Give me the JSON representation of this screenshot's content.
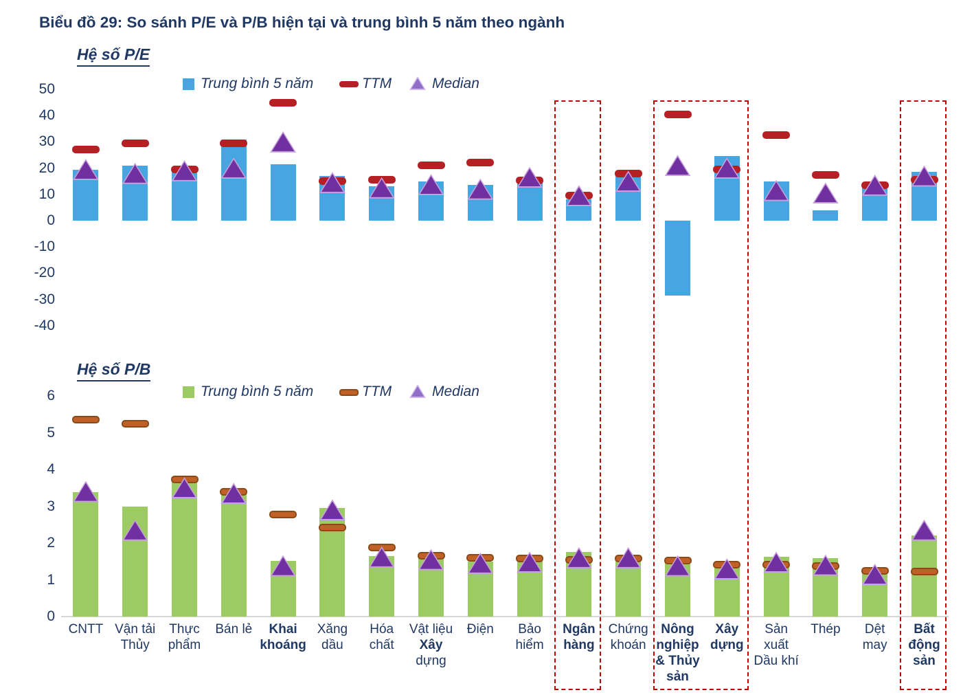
{
  "title": "Biểu đồ 29: So sánh P/E và P/B hiện tại và trung bình 5 năm theo ngành",
  "colors": {
    "text_navy": "#1F3864",
    "pe_bar_blue": "#47A6E1",
    "pe_ttm_red": "#B52025",
    "pb_bar_green": "#9CCB63",
    "pb_ttm_brown_fill": "#BF6127",
    "pb_ttm_brown_border": "#8A4A19",
    "median_purple": "#7030A0",
    "median_purple_edge": "#C79FDC",
    "legend_triangle_fill": "#8F6FC7",
    "legend_triangle_edge": "#CBB8E8",
    "highlight_box_red": "#C00000",
    "axis_gray": "#D6D6D6"
  },
  "categories": [
    {
      "name": "CNTT",
      "lines": [
        "CNTT"
      ],
      "bold": false
    },
    {
      "name": "Vận tải Thủy",
      "lines": [
        "Vận tải",
        "Thủy"
      ],
      "bold": false
    },
    {
      "name": "Thực phẩm",
      "lines": [
        "Thực",
        "phẩm"
      ],
      "bold": false
    },
    {
      "name": "Bán lẻ",
      "lines": [
        "Bán lẻ"
      ],
      "bold": false
    },
    {
      "name": "Khai khoáng",
      "lines": [
        "Khai",
        "khoáng"
      ],
      "bold": true
    },
    {
      "name": "Xăng dầu",
      "lines": [
        "Xăng",
        "dầu"
      ],
      "bold": false
    },
    {
      "name": "Hóa chất",
      "lines": [
        "Hóa",
        "chất"
      ],
      "bold": false
    },
    {
      "name": "Vật liệu Xây dựng",
      "lines": [
        "Vật liệu",
        "Xây",
        "dựng"
      ],
      "bold": false,
      "bold_lines": [
        1
      ]
    },
    {
      "name": "Điện",
      "lines": [
        "Điện"
      ],
      "bold": false
    },
    {
      "name": "Bảo hiểm",
      "lines": [
        "Bảo",
        "hiểm"
      ],
      "bold": false
    },
    {
      "name": "Ngân hàng",
      "lines": [
        "Ngân",
        "hàng"
      ],
      "bold": true
    },
    {
      "name": "Chứng khoán",
      "lines": [
        "Chứng",
        "khoán"
      ],
      "bold": false
    },
    {
      "name": "Nông nghiệp & Thủy sản",
      "lines": [
        "Nông",
        "nghiệp",
        "& Thủy",
        "sản"
      ],
      "bold": true
    },
    {
      "name": "Xây dựng",
      "lines": [
        "Xây",
        "dựng"
      ],
      "bold": true
    },
    {
      "name": "Sản xuất Dầu khí",
      "lines": [
        "Sản",
        "xuất",
        "Dầu khí"
      ],
      "bold": false
    },
    {
      "name": "Thép",
      "lines": [
        "Thép"
      ],
      "bold": false
    },
    {
      "name": "Dệt may",
      "lines": [
        "Dệt",
        "may"
      ],
      "bold": false
    },
    {
      "name": "Bất động sản",
      "lines": [
        "Bất",
        "động",
        "sản"
      ],
      "bold": true
    }
  ],
  "highlight_groups": [
    [
      "Ngân hàng"
    ],
    [
      "Nông nghiệp & Thủy sản",
      "Xây dựng"
    ],
    [
      "Bất động sản"
    ]
  ],
  "chart_data": [
    {
      "id": "pe",
      "type": "bar",
      "title": "Hệ số P/E",
      "legend_labels": {
        "avg": "Trung bình 5 năm",
        "ttm": "TTM",
        "median": "Median"
      },
      "legend_position": "top-center",
      "grid": false,
      "ylim": [
        -40,
        50
      ],
      "y_ticks": [
        50,
        40,
        30,
        20,
        10,
        0,
        -10,
        -20,
        -30,
        -40
      ],
      "categories": [
        "CNTT",
        "Vận tải Thủy",
        "Thực phẩm",
        "Bán lẻ",
        "Khai khoáng",
        "Xăng dầu",
        "Hóa chất",
        "Vật liệu Xây dựng",
        "Điện",
        "Bảo hiểm",
        "Ngân hàng",
        "Chứng khoán",
        "Nông nghiệp & Thủy sản",
        "Xây dựng",
        "Sản xuất Dầu khí",
        "Thép",
        "Dệt may",
        "Bất động sản"
      ],
      "series": [
        {
          "name": "Trung bình 5 năm",
          "mark": "bar",
          "values": [
            19.5,
            21,
            18.8,
            31,
            21.5,
            17,
            13,
            15,
            13.5,
            15.5,
            8,
            17,
            -28.5,
            24.5,
            15,
            4,
            13,
            18.5
          ]
        },
        {
          "name": "TTM",
          "mark": "dash",
          "values": [
            27,
            29.5,
            19.5,
            29.5,
            45,
            15,
            15.5,
            21,
            22,
            15.3,
            9.5,
            18,
            40.5,
            19.5,
            32.5,
            17.5,
            13.5,
            15.5
          ]
        },
        {
          "name": "Median",
          "mark": "triangle",
          "values": [
            19.5,
            18,
            19,
            20,
            30,
            14.5,
            12.5,
            13.7,
            12,
            16.5,
            9.5,
            15,
            21,
            20,
            11.5,
            10.5,
            13.5,
            17
          ]
        }
      ]
    },
    {
      "id": "pb",
      "type": "bar",
      "title": "Hệ số P/B",
      "legend_labels": {
        "avg": "Trung bình 5 năm",
        "ttm": "TTM",
        "median": "Median"
      },
      "legend_position": "top-center",
      "grid": false,
      "ylim": [
        0,
        6
      ],
      "y_ticks": [
        6,
        5,
        4,
        3,
        2,
        1,
        0
      ],
      "categories": [
        "CNTT",
        "Vận tải Thủy",
        "Thực phẩm",
        "Bán lẻ",
        "Khai khoáng",
        "Xăng dầu",
        "Hóa chất",
        "Vật liệu Xây dựng",
        "Điện",
        "Bảo hiểm",
        "Ngân hàng",
        "Chứng khoán",
        "Nông nghiệp & Thủy sản",
        "Xây dựng",
        "Sản xuất Dầu khí",
        "Thép",
        "Dệt may",
        "Bất động sản"
      ],
      "series": [
        {
          "name": "Trung bình 5 năm",
          "mark": "bar",
          "values": [
            3.38,
            3.0,
            3.7,
            3.33,
            1.52,
            2.95,
            1.65,
            1.6,
            1.5,
            1.55,
            1.75,
            1.65,
            1.5,
            1.45,
            1.62,
            1.58,
            1.28,
            2.2
          ]
        },
        {
          "name": "TTM",
          "mark": "dash",
          "values": [
            5.35,
            5.25,
            3.72,
            3.4,
            2.78,
            2.42,
            1.88,
            1.65,
            1.6,
            1.58,
            1.55,
            1.58,
            1.52,
            1.42,
            1.42,
            1.38,
            1.25,
            1.22
          ]
        },
        {
          "name": "Median",
          "mark": "triangle",
          "values": [
            3.4,
            2.35,
            3.5,
            3.35,
            1.38,
            2.9,
            1.62,
            1.55,
            1.45,
            1.48,
            1.6,
            1.6,
            1.38,
            1.3,
            1.48,
            1.4,
            1.15,
            2.35
          ]
        }
      ]
    }
  ]
}
